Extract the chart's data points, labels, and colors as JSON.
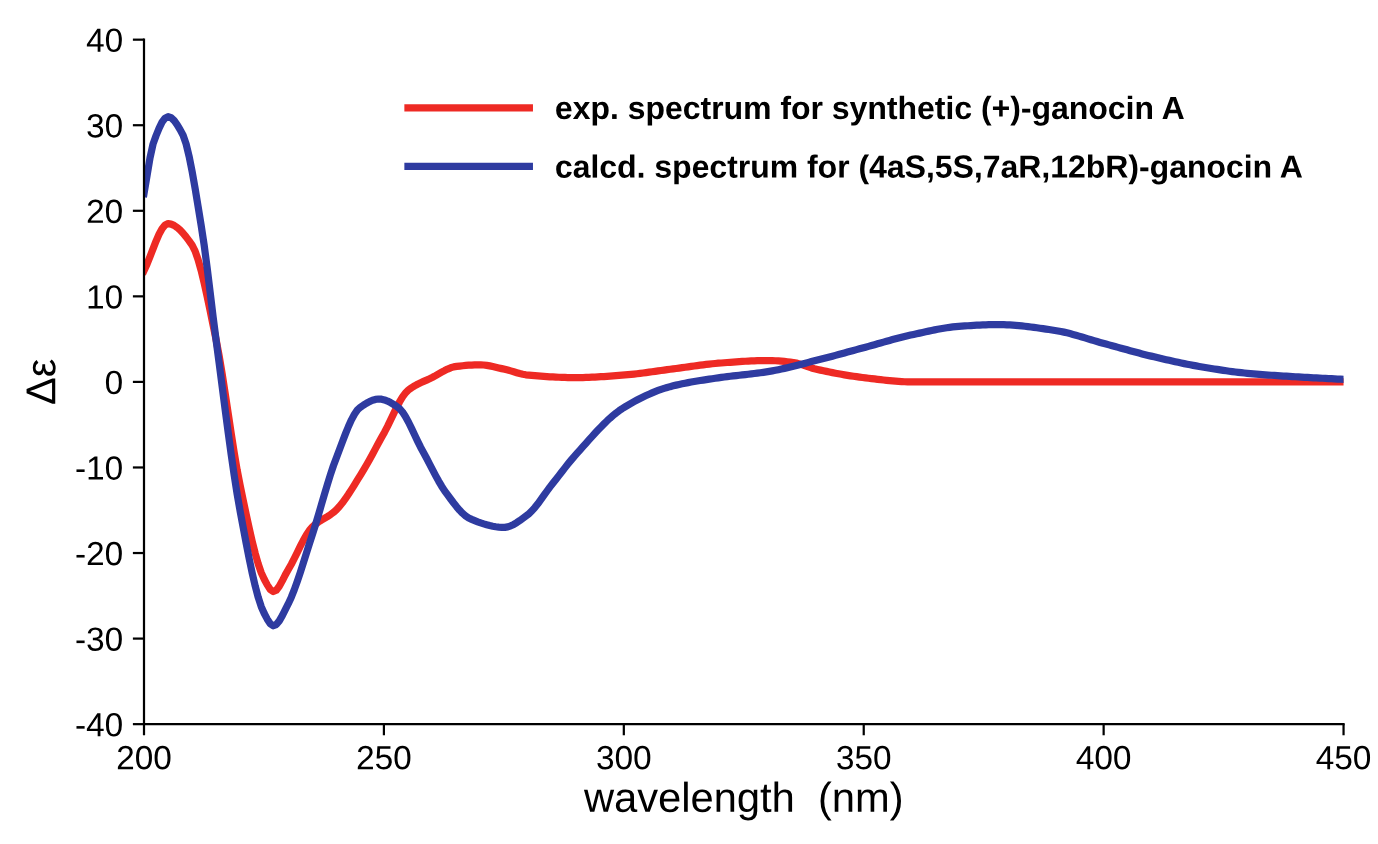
{
  "chart_data": {
    "type": "line",
    "xlabel": "wavelength  (nm)",
    "ylabel": "Δε",
    "xlim": [
      200,
      450
    ],
    "xticks": [
      200,
      250,
      300,
      350,
      400,
      450
    ],
    "ylim": [
      -40,
      40
    ],
    "yticks": [
      -40,
      -30,
      -20,
      -10,
      0,
      10,
      20,
      30,
      40
    ],
    "grid": false,
    "legend": "top right",
    "line_style": "solid",
    "marker": "none",
    "series": [
      {
        "name": "exp. spectrum for synthetic (+)-ganocin A",
        "color": "#ee2a24",
        "x": [
          200,
          205,
          210,
          215,
          220,
          225,
          227,
          230,
          235,
          240,
          245,
          250,
          255,
          260,
          265,
          270,
          275,
          280,
          290,
          300,
          310,
          320,
          330,
          335,
          340,
          350,
          360,
          380,
          400,
          450
        ],
        "values": [
          13,
          18.5,
          16,
          5,
          -12,
          -23,
          -24.5,
          -22,
          -17,
          -15,
          -11,
          -6,
          -1,
          0.5,
          1.8,
          2,
          1.5,
          0.8,
          0.5,
          0.8,
          1.5,
          2.2,
          2.5,
          2.3,
          1.5,
          0.5,
          0,
          0,
          0,
          0
        ]
      },
      {
        "name": "calcd. spectrum for (4aS,5S,7aR,12bR)-ganocin A",
        "color": "#2e3ba0",
        "x": [
          200,
          202,
          205,
          208,
          212,
          215,
          220,
          225,
          227,
          230,
          235,
          240,
          245,
          249,
          253,
          258,
          263,
          268,
          275,
          280,
          285,
          290,
          300,
          310,
          320,
          330,
          340,
          350,
          360,
          370,
          378,
          390,
          400,
          410,
          420,
          430,
          440,
          450
        ],
        "values": [
          22,
          28,
          31,
          29,
          18,
          5,
          -15,
          -27,
          -28.5,
          -26,
          -18,
          -9,
          -3,
          -2,
          -3,
          -8,
          -13,
          -16,
          -17,
          -15.5,
          -12,
          -8.5,
          -3,
          -0.5,
          0.5,
          1.2,
          2.5,
          4,
          5.5,
          6.5,
          6.7,
          6,
          4.5,
          3,
          1.8,
          1,
          0.6,
          0.3
        ]
      }
    ]
  }
}
